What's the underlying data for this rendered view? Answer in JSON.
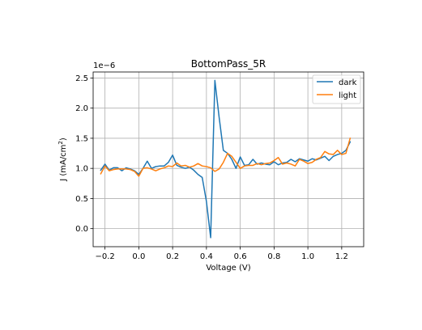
{
  "chart_data": {
    "type": "line",
    "title": "BottomPass_5R",
    "xlabel": "Voltage (V)",
    "ylabel_main": "J (mA/cm",
    "ylabel_sup": "2",
    "ylabel_close": ")",
    "offset_text": "1e−6",
    "xlim": [
      -0.27,
      1.33
    ],
    "ylim": [
      -0.3,
      2.6
    ],
    "xticks": [
      -0.2,
      0.0,
      0.2,
      0.4,
      0.6,
      0.8,
      1.0,
      1.2
    ],
    "xtick_labels": [
      "−0.2",
      "0.0",
      "0.2",
      "0.4",
      "0.6",
      "0.8",
      "1.0",
      "1.2"
    ],
    "yticks": [
      0.0,
      0.5,
      1.0,
      1.5,
      2.0,
      2.5
    ],
    "ytick_labels": [
      "0.0",
      "0.5",
      "1.0",
      "1.5",
      "2.0",
      "2.5"
    ],
    "grid": true,
    "legend_position": "top-right",
    "series": [
      {
        "name": "dark",
        "color": "#1f77b4",
        "x": [
          -0.225,
          -0.2,
          -0.175,
          -0.15,
          -0.125,
          -0.1,
          -0.075,
          -0.05,
          -0.025,
          0.0,
          0.025,
          0.05,
          0.075,
          0.1,
          0.125,
          0.15,
          0.175,
          0.2,
          0.225,
          0.25,
          0.275,
          0.3,
          0.325,
          0.35,
          0.375,
          0.4,
          0.425,
          0.45,
          0.475,
          0.5,
          0.525,
          0.55,
          0.575,
          0.6,
          0.625,
          0.65,
          0.675,
          0.7,
          0.725,
          0.75,
          0.775,
          0.8,
          0.825,
          0.85,
          0.875,
          0.9,
          0.925,
          0.95,
          0.975,
          1.0,
          1.025,
          1.05,
          1.075,
          1.1,
          1.125,
          1.15,
          1.175,
          1.2,
          1.225,
          1.25
        ],
        "values": [
          0.97,
          1.07,
          0.97,
          1.01,
          1.01,
          0.96,
          1.01,
          0.99,
          0.96,
          0.9,
          1.0,
          1.12,
          1.0,
          1.03,
          1.04,
          1.04,
          1.1,
          1.22,
          1.05,
          1.02,
          1.0,
          1.02,
          0.97,
          0.9,
          0.85,
          0.45,
          -0.15,
          2.46,
          1.85,
          1.3,
          1.25,
          1.15,
          1.0,
          1.19,
          1.05,
          1.06,
          1.15,
          1.07,
          1.09,
          1.07,
          1.06,
          1.11,
          1.06,
          1.09,
          1.1,
          1.15,
          1.11,
          1.16,
          1.14,
          1.12,
          1.16,
          1.14,
          1.17,
          1.2,
          1.13,
          1.2,
          1.23,
          1.25,
          1.3,
          1.44
        ]
      },
      {
        "name": "light",
        "color": "#ff7f0e",
        "x": [
          -0.225,
          -0.2,
          -0.175,
          -0.15,
          -0.125,
          -0.1,
          -0.075,
          -0.05,
          -0.025,
          0.0,
          0.025,
          0.05,
          0.075,
          0.1,
          0.125,
          0.15,
          0.175,
          0.2,
          0.225,
          0.25,
          0.275,
          0.3,
          0.325,
          0.35,
          0.375,
          0.4,
          0.425,
          0.45,
          0.475,
          0.5,
          0.525,
          0.55,
          0.575,
          0.6,
          0.625,
          0.65,
          0.675,
          0.7,
          0.725,
          0.75,
          0.775,
          0.8,
          0.825,
          0.85,
          0.875,
          0.9,
          0.925,
          0.95,
          0.975,
          1.0,
          1.025,
          1.05,
          1.075,
          1.1,
          1.125,
          1.15,
          1.175,
          1.2,
          1.225,
          1.25
        ],
        "values": [
          0.91,
          1.04,
          0.96,
          0.98,
          0.99,
          0.99,
          0.99,
          0.98,
          0.95,
          0.87,
          1.0,
          1.01,
          0.99,
          0.96,
          0.99,
          1.01,
          1.04,
          1.03,
          1.09,
          1.04,
          1.05,
          1.02,
          1.04,
          1.08,
          1.04,
          1.03,
          1.01,
          0.95,
          0.99,
          1.1,
          1.25,
          1.2,
          1.1,
          1.0,
          1.04,
          1.05,
          1.05,
          1.08,
          1.06,
          1.08,
          1.09,
          1.13,
          1.18,
          1.07,
          1.09,
          1.07,
          1.04,
          1.15,
          1.12,
          1.08,
          1.1,
          1.15,
          1.18,
          1.28,
          1.24,
          1.23,
          1.3,
          1.23,
          1.25,
          1.5
        ]
      }
    ]
  }
}
